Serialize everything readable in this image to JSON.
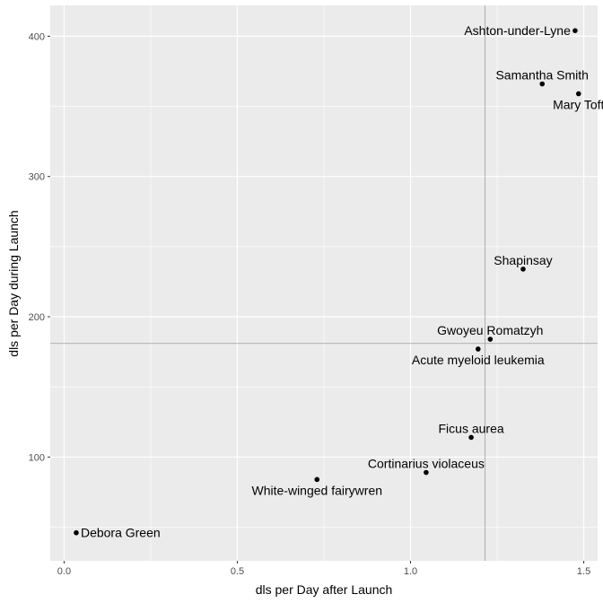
{
  "chart_data": {
    "type": "scatter",
    "title": "",
    "xlabel": "dls per Day after Launch",
    "ylabel": "dls per Day during Launch",
    "xlim": [
      -0.04,
      1.54
    ],
    "ylim": [
      26,
      422
    ],
    "x_ticks": [
      0.0,
      0.5,
      1.0,
      1.5
    ],
    "x_tick_labels": [
      "0.0",
      "0.5",
      "1.0",
      "1.5"
    ],
    "y_ticks": [
      100,
      200,
      300,
      400
    ],
    "y_tick_labels": [
      "100",
      "200",
      "300",
      "400"
    ],
    "grid": true,
    "legend": "none",
    "reference_lines": {
      "vertical_x": 1.215,
      "horizontal_y": 181
    },
    "points": [
      {
        "label": "Ashton-under-Lyne",
        "x": 1.475,
        "y": 404,
        "label_side": "left"
      },
      {
        "label": "Samantha Smith",
        "x": 1.38,
        "y": 366,
        "label_side": "above"
      },
      {
        "label": "Mary Toft",
        "x": 1.485,
        "y": 359,
        "label_side": "below"
      },
      {
        "label": "Shapinsay",
        "x": 1.325,
        "y": 234,
        "label_side": "above"
      },
      {
        "label": "Gwoyeu Romatzyh",
        "x": 1.23,
        "y": 184,
        "label_side": "above"
      },
      {
        "label": "Acute myeloid leukemia",
        "x": 1.195,
        "y": 177,
        "label_side": "below"
      },
      {
        "label": "Ficus aurea",
        "x": 1.175,
        "y": 114,
        "label_side": "above"
      },
      {
        "label": "Cortinarius violaceus",
        "x": 1.045,
        "y": 89,
        "label_side": "above"
      },
      {
        "label": "White-winged fairywren",
        "x": 0.73,
        "y": 84,
        "label_side": "below"
      },
      {
        "label": "Debora Green",
        "x": 0.035,
        "y": 46,
        "label_side": "right"
      }
    ],
    "colors": {
      "panel": "#ebebeb",
      "grid": "#ffffff",
      "point": "#000000",
      "refline": "#9e9e9e"
    }
  }
}
